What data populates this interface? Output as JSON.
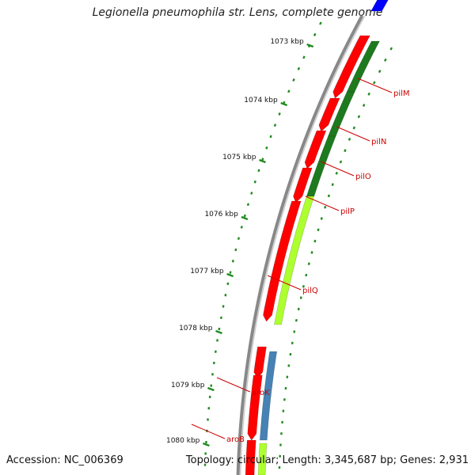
{
  "title": "Legionella pneumophila str. Lens, complete genome",
  "footer": {
    "accession": "Accession: NC_006369",
    "summary": "Topology: circular; Length: 3,345,687 bp; Genes: 2,931"
  },
  "colors": {
    "backbone": "#888888",
    "cds_forward": "#ff0000",
    "cds_reverse": "#adff2f",
    "cds_dark": "#1e7a1e",
    "cds_blue": "#4682b4",
    "tick": "#228b22",
    "gene_label": "#cc0000",
    "top_feature": "#0000ff"
  },
  "scale": {
    "unit": "kbp",
    "ticks": [
      {
        "label": "1073 kbp",
        "value": 1073
      },
      {
        "label": "1074 kbp",
        "value": 1074
      },
      {
        "label": "1075 kbp",
        "value": 1075
      },
      {
        "label": "1076 kbp",
        "value": 1076
      },
      {
        "label": "1077 kbp",
        "value": 1077
      },
      {
        "label": "1078 kbp",
        "value": 1078
      },
      {
        "label": "1079 kbp",
        "value": 1079
      },
      {
        "label": "1080 kbp",
        "value": 1080
      }
    ]
  },
  "genes": [
    {
      "name": "pilM"
    },
    {
      "name": "pilN"
    },
    {
      "name": "pilO"
    },
    {
      "name": "pilP"
    },
    {
      "name": "pilQ"
    },
    {
      "name": "aroK"
    },
    {
      "name": "aroB"
    }
  ]
}
